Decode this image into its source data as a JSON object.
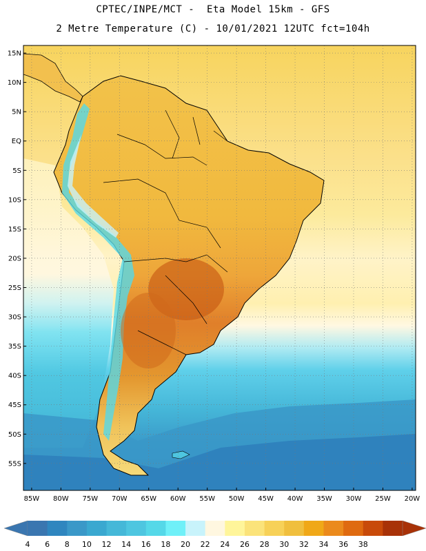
{
  "header": {
    "line1": "CPTEC/INPE/MCT -  Eta Model 15km - GFS",
    "line2": "2 Metre Temperature (C) - 10/01/2021 12UTC fct=104h"
  },
  "map": {
    "lat_labels": [
      "15N",
      "10N",
      "5N",
      "EQ",
      "5S",
      "10S",
      "15S",
      "20S",
      "25S",
      "30S",
      "35S",
      "40S",
      "45S",
      "50S",
      "55S"
    ],
    "lon_labels": [
      "85W",
      "80W",
      "75W",
      "70W",
      "65W",
      "60W",
      "55W",
      "50W",
      "45W",
      "40W",
      "35W",
      "30W",
      "25W",
      "20W"
    ],
    "lat_values": [
      15,
      10,
      5,
      0,
      -5,
      -10,
      -15,
      -20,
      -25,
      -30,
      -35,
      -40,
      -45,
      -50,
      -55
    ],
    "lon_values": [
      -85,
      -80,
      -75,
      -70,
      -65,
      -60,
      -55,
      -50,
      -45,
      -40,
      -35,
      -30,
      -25,
      -20
    ]
  },
  "colorbar": {
    "labels": [
      "4",
      "6",
      "8",
      "10",
      "12",
      "14",
      "16",
      "18",
      "20",
      "22",
      "24",
      "26",
      "28",
      "30",
      "32",
      "34",
      "36",
      "38"
    ],
    "colors": [
      "#3a76b0",
      "#2f86bf",
      "#3a98c8",
      "#3aa8d0",
      "#45b8d8",
      "#4ec6e0",
      "#55d8e8",
      "#6ff0f8",
      "#c8f3fb",
      "#fff7e0",
      "#fff59a",
      "#fbe37a",
      "#f7d158",
      "#f0bf3e",
      "#f0a818",
      "#eb8a1c",
      "#df6a10",
      "#c84a0a",
      "#a83208"
    ],
    "low_color": "#3a76b0",
    "high_color": "#a83208"
  },
  "ocean_colors": {
    "tropical": "#fbe08a",
    "subtropical": "#fff4c4",
    "mid": "#53c3e0",
    "south": "#2f86bf"
  }
}
